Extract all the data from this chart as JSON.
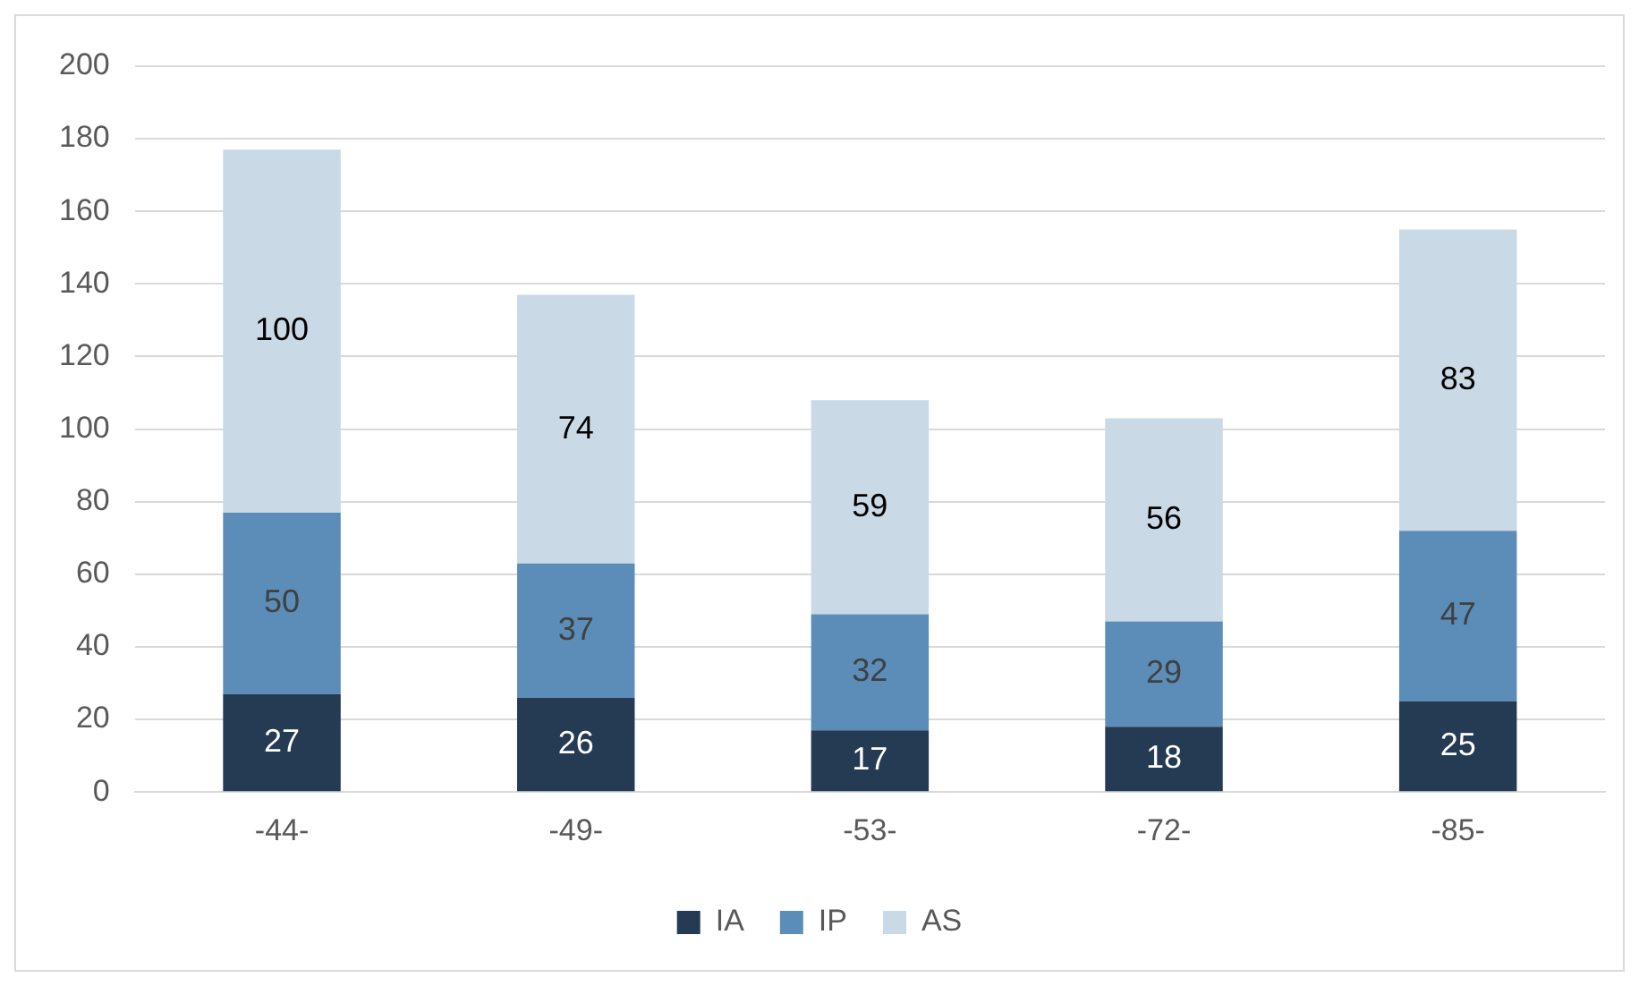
{
  "chart_data": {
    "type": "bar",
    "stacked": true,
    "categories": [
      "-44-",
      "-49-",
      "-53-",
      "-72-",
      "-85-"
    ],
    "series": [
      {
        "name": "IA",
        "color": "#243b53",
        "values": [
          27,
          26,
          17,
          18,
          25
        ]
      },
      {
        "name": "IP",
        "color": "#5b8db8",
        "values": [
          50,
          37,
          32,
          29,
          47
        ]
      },
      {
        "name": "AS",
        "color": "#c9d9e6",
        "values": [
          100,
          74,
          59,
          56,
          83
        ]
      }
    ],
    "ylim": [
      0,
      200
    ],
    "yticks": [
      0,
      20,
      40,
      60,
      80,
      100,
      120,
      140,
      160,
      180,
      200
    ],
    "grid": "y",
    "legend": "bottom",
    "data_labels": true
  }
}
